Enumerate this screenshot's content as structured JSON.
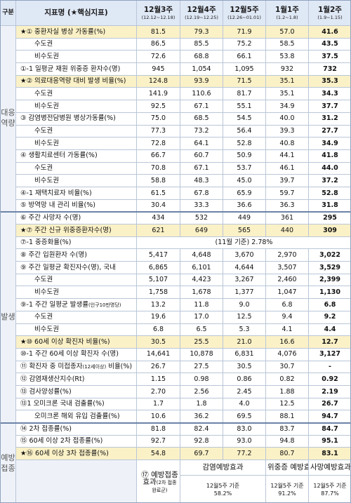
{
  "header": {
    "group": "구분",
    "indicator": "지표명 (★핵심지표)",
    "cols": [
      {
        "label": "12월3주",
        "sub": "(12.12~12.18)"
      },
      {
        "label": "12월4주",
        "sub": "(12.19~12.25)"
      },
      {
        "label": "12월5주",
        "sub": "(12.26~01.01)"
      },
      {
        "label": "1월1주",
        "sub": "(1.2~1.8)"
      },
      {
        "label": "1월2주",
        "sub": "(1.9~1.15)"
      }
    ]
  },
  "groups": {
    "response": "대응역량",
    "outbreak": "발생",
    "vaccination": "예방접종"
  },
  "rows": [
    {
      "name": "★① 중환자실 병상 가동률(%)",
      "v": [
        "81.5",
        "79.3",
        "71.9",
        "57.0",
        "41.6"
      ]
    },
    {
      "name": "수도권",
      "v": [
        "86.5",
        "85.5",
        "75.2",
        "58.5",
        "43.5"
      ]
    },
    {
      "name": "비수도권",
      "v": [
        "72.6",
        "68.8",
        "66.1",
        "53.8",
        "37.5"
      ]
    },
    {
      "name": "①-1 일평균 재원 위중증 환자수(명)",
      "v": [
        "945",
        "1,054",
        "1,095",
        "932",
        "732"
      ]
    },
    {
      "name": "★② 의료대응역량 대비 발생 비율(%)",
      "v": [
        "124.8",
        "93.9",
        "71.5",
        "35.1",
        "35.3"
      ]
    },
    {
      "name": "수도권",
      "v": [
        "141.9",
        "110.6",
        "81.7",
        "35.1",
        "34.3"
      ]
    },
    {
      "name": "비수도권",
      "v": [
        "92.5",
        "67.1",
        "55.1",
        "34.9",
        "37.7"
      ]
    },
    {
      "name": "③ 감염병전담병원 병상가동률(%)",
      "v": [
        "75.0",
        "68.5",
        "54.5",
        "40.0",
        "31.2"
      ]
    },
    {
      "name": "수도권",
      "v": [
        "77.3",
        "73.2",
        "56.4",
        "39.3",
        "27.7"
      ]
    },
    {
      "name": "비수도권",
      "v": [
        "72.8",
        "64.1",
        "52.8",
        "40.8",
        "34.9"
      ]
    },
    {
      "name": "④ 생활치료센터 가동률(%)",
      "v": [
        "66.7",
        "60.7",
        "50.9",
        "44.1",
        "41.8"
      ]
    },
    {
      "name": "수도권",
      "v": [
        "70.8",
        "67.1",
        "53.7",
        "46.1",
        "44.0"
      ]
    },
    {
      "name": "비수도권",
      "v": [
        "58.8",
        "48.3",
        "45.0",
        "39.7",
        "37.2"
      ]
    },
    {
      "name": "④-1 재택치료자 비율(%)",
      "v": [
        "61.5",
        "67.8",
        "65.9",
        "59.7",
        "52.8"
      ]
    },
    {
      "name": "⑤ 방역망 내 관리 비율(%)",
      "v": [
        "30.4",
        "33.3",
        "36.6",
        "36.3",
        "31.8"
      ]
    },
    {
      "name": "⑥ 주간 사망자 수(명)",
      "v": [
        "434",
        "532",
        "449",
        "361",
        "295"
      ]
    },
    {
      "name": "★⑦ 주간 신규 위중증환자수(명)",
      "v": [
        "621",
        "649",
        "565",
        "440",
        "309"
      ]
    },
    {
      "name": "⑦-1 중증화율(%)",
      "merged": "(11월 기준) 2.78%"
    },
    {
      "name": "⑧ 주간 입원환자 수(명)",
      "v": [
        "5,417",
        "4,648",
        "3,670",
        "2,970",
        "3,022"
      ]
    },
    {
      "name": "⑨ 주간 일평균 확진자수(명), 국내",
      "v": [
        "6,865",
        "6,101",
        "4,644",
        "3,507",
        "3,529"
      ]
    },
    {
      "name": "수도권",
      "v": [
        "5,107",
        "4,423",
        "3,267",
        "2,460",
        "2,399"
      ]
    },
    {
      "name": "비수도권",
      "v": [
        "1,758",
        "1,678",
        "1,377",
        "1,047",
        "1,130"
      ]
    },
    {
      "name": "⑨-1 주간 일평균 발생률",
      "small": "(인구10만명당)",
      "v": [
        "13.2",
        "11.8",
        "9.0",
        "6.8",
        "6.8"
      ]
    },
    {
      "name": "수도권",
      "v": [
        "19.6",
        "17.0",
        "12.5",
        "9.4",
        "9.2"
      ]
    },
    {
      "name": "비수도권",
      "v": [
        "6.8",
        "6.5",
        "5.3",
        "4.1",
        "4.4"
      ]
    },
    {
      "name": "★⑩ 60세 이상 확진자 비율(%)",
      "v": [
        "30.5",
        "25.5",
        "21.0",
        "16.6",
        "12.7"
      ]
    },
    {
      "name": "⑩-1 주간 60세 이상 확진자 수(명)",
      "v": [
        "14,641",
        "10,878",
        "6,831",
        "4,076",
        "3,127"
      ]
    },
    {
      "name": "⑪ 확진자 중 미접종자",
      "small": "(12세이상)",
      "tail": " 비율(%)",
      "v": [
        "26.7",
        "27.5",
        "30.5",
        "30.7",
        "-"
      ]
    },
    {
      "name": "⑫ 감염재생산지수(Rt)",
      "v": [
        "1.15",
        "0.98",
        "0.86",
        "0.82",
        "0.92"
      ]
    },
    {
      "name": "⑬ 검사양성률(%)",
      "v": [
        "2.70",
        "2.56",
        "2.45",
        "1.88",
        "2.19"
      ]
    },
    {
      "name": "⑬1 오미크론 국내 검출률(%)",
      "v": [
        "1.7",
        "1.8",
        "4.0",
        "12.5",
        "26.7"
      ]
    },
    {
      "name": "오미크론 해외 유입 검출률(%)",
      "v": [
        "10.6",
        "36.2",
        "69.5",
        "88.1",
        "94.7"
      ]
    },
    {
      "name": "⑭ 2차 접종률(%)",
      "v": [
        "81.8",
        "82.4",
        "83.0",
        "83.7",
        "84.7"
      ]
    },
    {
      "name": "⑮ 60세 이상 2차 접종률(%)",
      "v": [
        "92.7",
        "92.8",
        "93.0",
        "94.8",
        "95.1"
      ]
    },
    {
      "name": "★⑯ 60세 이상 3차 접종률(%)",
      "v": [
        "54.8",
        "69.7",
        "77.2",
        "80.7",
        "83.1"
      ]
    }
  ],
  "effect": {
    "name": "⑰ 예방접종효과",
    "small": "(2차 접종완료군)",
    "headers": [
      "감염예방효과",
      "위중증 예방효과",
      "사망예방효과"
    ],
    "values": [
      {
        "when": "12월5주 기준",
        "val": "58.2%"
      },
      {
        "when": "12월5주 기준",
        "val": "91.2%"
      },
      {
        "when": "12월5주 기준",
        "val": "87.7%"
      }
    ]
  }
}
